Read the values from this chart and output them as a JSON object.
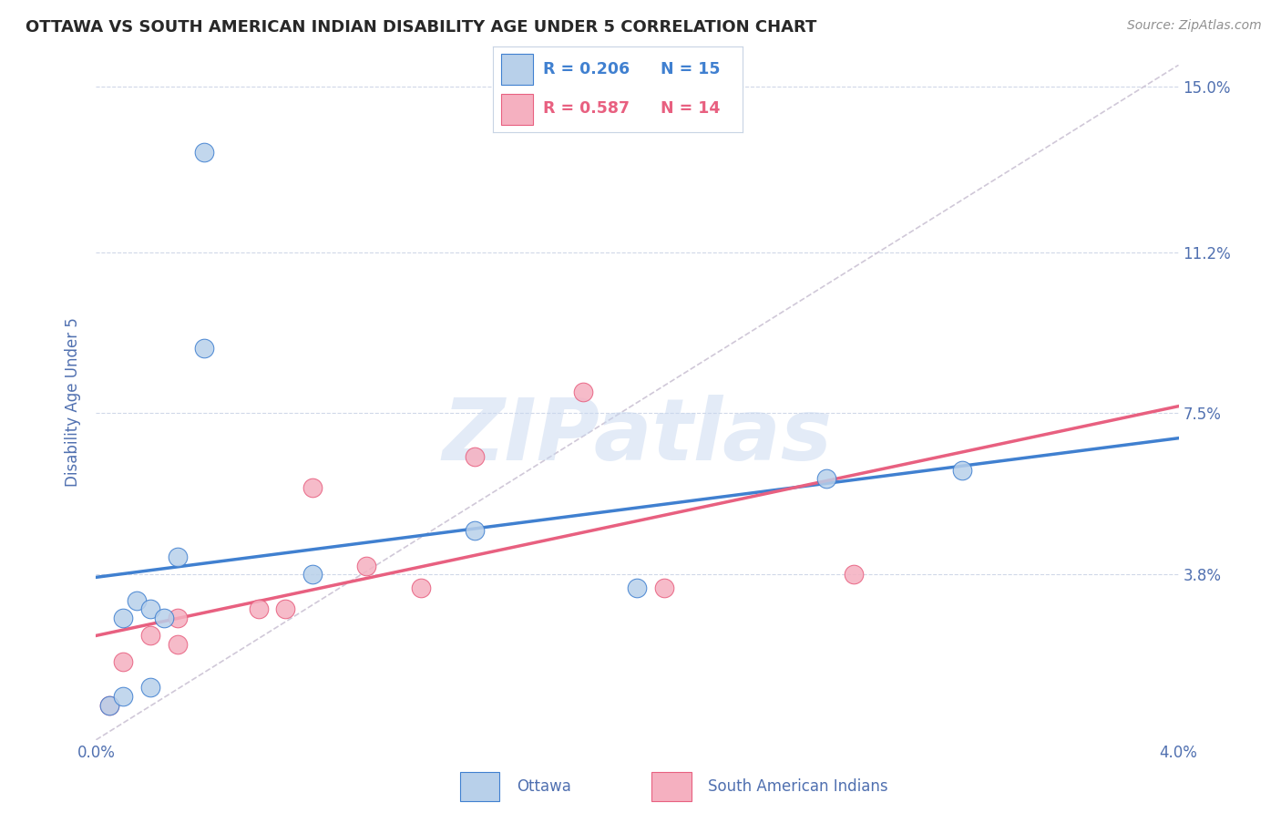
{
  "title": "OTTAWA VS SOUTH AMERICAN INDIAN DISABILITY AGE UNDER 5 CORRELATION CHART",
  "source": "Source: ZipAtlas.com",
  "ylabel": "Disability Age Under 5",
  "xmin": 0.0,
  "xmax": 0.04,
  "ymin": 0.0,
  "ymax": 0.155,
  "yticks": [
    0.038,
    0.075,
    0.112,
    0.15
  ],
  "ytick_labels": [
    "3.8%",
    "7.5%",
    "11.2%",
    "15.0%"
  ],
  "xticks": [
    0.0,
    0.008,
    0.016,
    0.024,
    0.032,
    0.04
  ],
  "xtick_labels": [
    "0.0%",
    "",
    "",
    "",
    "",
    "4.0%"
  ],
  "ottawa_color": "#b8d0ea",
  "sai_color": "#f5b0c0",
  "ottawa_line_color": "#4080d0",
  "sai_line_color": "#e86080",
  "diag_line_color": "#d0c8d8",
  "watermark_text": "ZIPatlas",
  "watermark_color": "#c8d8f0",
  "ottawa_x": [
    0.0005,
    0.001,
    0.001,
    0.0015,
    0.002,
    0.002,
    0.0025,
    0.003,
    0.004,
    0.004,
    0.008,
    0.014,
    0.02,
    0.027,
    0.032
  ],
  "ottawa_y": [
    0.008,
    0.01,
    0.028,
    0.032,
    0.012,
    0.03,
    0.028,
    0.042,
    0.135,
    0.09,
    0.038,
    0.048,
    0.035,
    0.06,
    0.062
  ],
  "sai_x": [
    0.0005,
    0.001,
    0.002,
    0.003,
    0.003,
    0.006,
    0.007,
    0.008,
    0.01,
    0.012,
    0.014,
    0.018,
    0.021,
    0.028
  ],
  "sai_y": [
    0.008,
    0.018,
    0.024,
    0.022,
    0.028,
    0.03,
    0.03,
    0.058,
    0.04,
    0.035,
    0.065,
    0.08,
    0.035,
    0.038
  ],
  "legend_r_ottawa": "R = 0.206",
  "legend_n_ottawa": "N = 15",
  "legend_r_sai": "R = 0.587",
  "legend_n_sai": "N = 14",
  "title_fontsize": 13,
  "source_fontsize": 10,
  "tick_fontsize": 12,
  "ylabel_fontsize": 12
}
